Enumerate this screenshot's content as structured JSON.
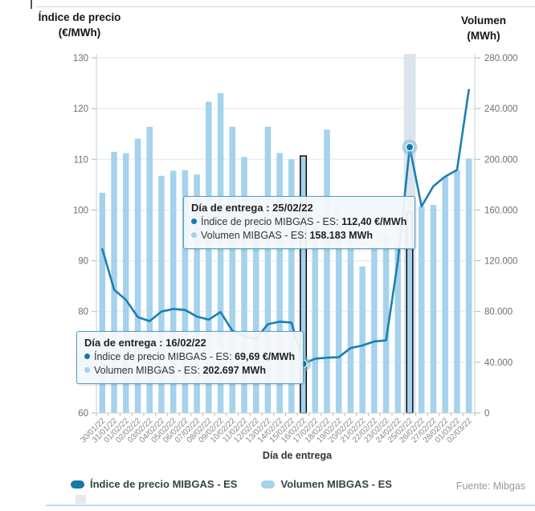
{
  "colors": {
    "bar": "#a5d2ec",
    "line": "#1c7fb0",
    "marker": "#1579a9",
    "marker_halo": "#7db8d8",
    "highlight_band": "#dce4ee",
    "grid": "#e7e7e7",
    "axis_line": "#c4d3dd",
    "x_tick": "#9ec7dd",
    "tick_label": "#6f6f6f",
    "x_label": "#888888",
    "selected_bar_outline": "#000000"
  },
  "axis_titles": {
    "left_line1": "Índice de precio",
    "left_line2": "(€/MWh)",
    "right_line1": "Volumen",
    "right_line2": "(MWh)",
    "x": "Día de entrega"
  },
  "legend": {
    "price_label": "Índice de precio MIBGAS - ES",
    "volume_label": "Volumen MIBGAS - ES"
  },
  "source_text": "Fuente: Mibgas",
  "tooltips": [
    {
      "title": "Día de entrega : 25/02/22",
      "price_label": "Índice de precio MIBGAS - ES: ",
      "price_value": "112,40 €/MWh",
      "volume_label": "Volumen MIBGAS - ES: ",
      "volume_value": "158.183 MWh"
    },
    {
      "title": "Día de entrega : 16/02/22",
      "price_label": "Índice de precio MIBGAS - ES: ",
      "price_value": "69,69 €/MWh",
      "volume_label": "Volumen MIBGAS - ES: ",
      "volume_value": "202.697 MWh"
    }
  ],
  "chart_data": {
    "type": "combo",
    "categories": [
      "30/01/22",
      "31/01/22",
      "01/02/22",
      "02/02/22",
      "03/02/22",
      "04/02/22",
      "05/02/22",
      "06/02/22",
      "07/02/22",
      "08/02/22",
      "09/02/22",
      "10/02/22",
      "11/02/22",
      "12/02/22",
      "13/02/22",
      "14/02/22",
      "15/02/22",
      "16/02/22",
      "17/02/22",
      "18/02/22",
      "19/02/22",
      "20/02/22",
      "21/02/22",
      "22/02/22",
      "23/02/22",
      "24/02/22",
      "25/02/22",
      "26/02/22",
      "27/02/22",
      "28/02/22",
      "01/03/22",
      "02/03/22"
    ],
    "series": [
      {
        "name": "Índice de precio MIBGAS - ES",
        "type": "line",
        "axis": "left",
        "unit": "€/MWh",
        "values": [
          92.3,
          84.3,
          82.3,
          78.9,
          78.1,
          80.0,
          80.5,
          80.3,
          79.0,
          78.4,
          79.9,
          76.2,
          75.2,
          74.6,
          77.5,
          78.0,
          77.8,
          69.69,
          70.7,
          70.9,
          71.0,
          72.8,
          73.3,
          74.1,
          74.3,
          90.0,
          112.4,
          100.7,
          104.7,
          106.6,
          107.9,
          123.7
        ]
      },
      {
        "name": "Volumen MIBGAS - ES",
        "type": "bar",
        "axis": "right",
        "unit": "MWh",
        "values": [
          173600,
          205900,
          204800,
          216200,
          225700,
          187000,
          191000,
          191400,
          188000,
          245400,
          252200,
          225700,
          201800,
          150000,
          225700,
          205000,
          200000,
          202697,
          150000,
          223400,
          160000,
          152000,
          115500,
          131000,
          140000,
          131300,
          158183,
          162800,
          164000,
          186400,
          191600,
          200600
        ]
      }
    ],
    "xlabel": "Día de entrega",
    "ylabel_left": "Índice de precio (€/MWh)",
    "ylabel_right": "Volumen (MWh)",
    "ylim_left": [
      60,
      130
    ],
    "ylim_right": [
      0,
      280000
    ],
    "y_ticks_left": [
      60,
      70,
      80,
      90,
      100,
      110,
      120,
      130
    ],
    "y_tick_labels_left": [
      "60",
      "70",
      "80",
      "90",
      "100",
      "110",
      "120",
      "130"
    ],
    "y_tick_labels_right": [
      "0",
      "40.000",
      "80.000",
      "120.000",
      "160.000",
      "200.000",
      "240.000",
      "280.000"
    ],
    "grid": true,
    "legend_position": "bottom",
    "selection": {
      "highlighted_category": "25/02/22",
      "highlight_index": 26,
      "outlined_bar_indices": [
        17,
        26
      ],
      "marker_point_indices": [
        17,
        26
      ]
    }
  }
}
